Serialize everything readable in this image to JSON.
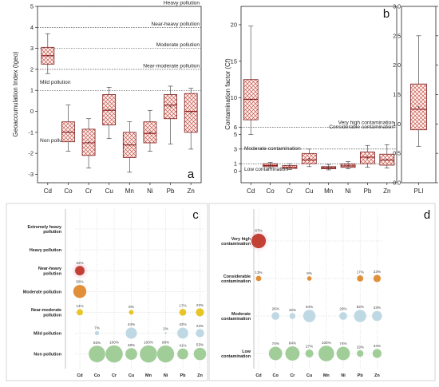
{
  "colors": {
    "hatch": "#c1392b",
    "median": "#8b1a1a",
    "bubble_red": "#c0392b",
    "bubble_orange": "#e08a2e",
    "bubble_yellow": "#e6c21c",
    "bubble_lightblue": "#bcd8e3",
    "bubble_green": "#9ccb93"
  },
  "panels": {
    "a": {
      "letter": "a"
    },
    "b": {
      "letter": "b"
    },
    "c": {
      "letter": "c"
    },
    "d": {
      "letter": "d"
    }
  },
  "chart_data": [
    {
      "id": "a",
      "type": "box",
      "ylabel": "Geoaccumulation Index (Igeo)",
      "ylim": [
        -3.4,
        5
      ],
      "yticks": [
        -3,
        -2,
        -1,
        0,
        1,
        2,
        3,
        4,
        5
      ],
      "categories": [
        "Cd",
        "Co",
        "Cr",
        "Cu",
        "Mn",
        "Ni",
        "Pb",
        "Zn"
      ],
      "boxes": [
        {
          "min": 1.8,
          "q1": 2.25,
          "median": 2.65,
          "q3": 3.05,
          "max": 3.7
        },
        {
          "min": -1.9,
          "q1": -1.45,
          "median": -1.0,
          "q3": -0.5,
          "max": 0.3
        },
        {
          "min": -2.7,
          "q1": -2.1,
          "median": -1.5,
          "q3": -0.85,
          "max": -0.35
        },
        {
          "min": -1.3,
          "q1": -0.65,
          "median": 0.05,
          "q3": 0.8,
          "max": 1.15
        },
        {
          "min": -2.9,
          "q1": -2.2,
          "median": -1.6,
          "q3": -1.0,
          "max": -0.5
        },
        {
          "min": -1.9,
          "q1": -1.5,
          "median": -1.05,
          "q3": -0.5,
          "max": 0.05
        },
        {
          "min": -1.55,
          "q1": -0.35,
          "median": 0.3,
          "q3": 0.8,
          "max": 1.2
        },
        {
          "min": -1.8,
          "q1": -1.0,
          "median": 0.0,
          "q3": 0.85,
          "max": 1.1
        }
      ],
      "thresholds": [
        {
          "value": 5,
          "label": "Heavy pollution"
        },
        {
          "value": 4,
          "label": "Near-heavy pollution"
        },
        {
          "value": 3,
          "label": "Moderate pollution"
        },
        {
          "value": 2,
          "label": "Near-moderate pollution"
        },
        {
          "value": 1,
          "label": "Mild pollution"
        },
        {
          "value": 0,
          "label": "Non pollution"
        }
      ]
    },
    {
      "id": "b",
      "type": "box",
      "ylabel": "Contamination factor (Cf)",
      "ylim": [
        -1.6,
        22.5
      ],
      "yticks": [
        0,
        1,
        3,
        5,
        6,
        10,
        15,
        20
      ],
      "categories": [
        "Cd",
        "Co",
        "Cr",
        "Cu",
        "Mn",
        "Ni",
        "Pb",
        "Zn"
      ],
      "boxes": [
        {
          "min": 5.0,
          "q1": 7.0,
          "median": 9.8,
          "q3": 12.5,
          "max": 19.8
        },
        {
          "min": 0.4,
          "q1": 0.6,
          "median": 0.75,
          "q3": 1.0,
          "max": 1.2
        },
        {
          "min": 0.2,
          "q1": 0.35,
          "median": 0.5,
          "q3": 0.75,
          "max": 1.0
        },
        {
          "min": 0.6,
          "q1": 1.0,
          "median": 1.5,
          "q3": 2.4,
          "max": 3.0
        },
        {
          "min": 0.15,
          "q1": 0.3,
          "median": 0.45,
          "q3": 0.6,
          "max": 0.9
        },
        {
          "min": 0.3,
          "q1": 0.5,
          "median": 0.7,
          "q3": 0.95,
          "max": 1.3
        },
        {
          "min": 0.5,
          "q1": 1.0,
          "median": 1.9,
          "q3": 2.6,
          "max": 3.5
        },
        {
          "min": 0.4,
          "q1": 0.8,
          "median": 1.5,
          "q3": 2.3,
          "max": 3.6
        }
      ],
      "thresholds": [
        {
          "value": 6,
          "label": "Very high contamination"
        },
        {
          "value": 3,
          "label": "Considerable contamination"
        },
        {
          "value": 1,
          "label": "Moderate contamination"
        }
      ],
      "bottom_label": "Low contamination"
    },
    {
      "id": "b-pli",
      "type": "box",
      "ylim": [
        0,
        3.0
      ],
      "yticks": [
        0.0,
        0.5,
        1.0,
        1.5,
        2.0,
        2.5,
        3.0
      ],
      "ytick_labels": [
        "0.0",
        "0.5",
        "1.0",
        "1.5",
        "2.0",
        "2.5",
        "3.0"
      ],
      "categories": [
        "PLI"
      ],
      "boxes": [
        {
          "min": 0.62,
          "q1": 0.9,
          "median": 1.25,
          "q3": 1.68,
          "max": 2.5
        }
      ]
    },
    {
      "id": "c",
      "type": "bubble",
      "categories": [
        "Cd",
        "Co",
        "Cr",
        "Cu",
        "Mn",
        "Ni",
        "Pb",
        "Zn"
      ],
      "rows": [
        "Extremely heavy pollution",
        "Heavy pollution",
        "Near-heavy pollution",
        "Moderate pollution",
        "Near-moderate pollution",
        "Mild pollution",
        "Non pollution"
      ],
      "bubbles": [
        {
          "cat": "Cd",
          "row": 2,
          "pct": 32,
          "label": "32%",
          "color": "bubble_red"
        },
        {
          "cat": "Cd",
          "row": 3,
          "pct": 58,
          "label": "58%",
          "color": "bubble_orange"
        },
        {
          "cat": "Cd",
          "row": 4,
          "pct": 14,
          "label": "14%",
          "color": "bubble_yellow"
        },
        {
          "cat": "Co",
          "row": 5,
          "pct": 7,
          "label": "7%",
          "color": "bubble_lightblue"
        },
        {
          "cat": "Co",
          "row": 6,
          "pct": 93,
          "label": "93%",
          "color": "bubble_green"
        },
        {
          "cat": "Cr",
          "row": 6,
          "pct": 100,
          "label": "100%",
          "color": "bubble_green"
        },
        {
          "cat": "Cu",
          "row": 4,
          "pct": 8,
          "label": "8%",
          "color": "bubble_yellow"
        },
        {
          "cat": "Cu",
          "row": 5,
          "pct": 44,
          "label": "44%",
          "color": "bubble_lightblue"
        },
        {
          "cat": "Cu",
          "row": 6,
          "pct": 48,
          "label": "48%",
          "color": "bubble_green"
        },
        {
          "cat": "Mn",
          "row": 6,
          "pct": 100,
          "label": "100%",
          "color": "bubble_green"
        },
        {
          "cat": "Ni",
          "row": 5,
          "pct": 2,
          "label": "2%",
          "color": "bubble_lightblue"
        },
        {
          "cat": "Ni",
          "row": 6,
          "pct": 98,
          "label": "98%",
          "color": "bubble_green"
        },
        {
          "cat": "Pb",
          "row": 4,
          "pct": 17,
          "label": "17%",
          "color": "bubble_yellow"
        },
        {
          "cat": "Pb",
          "row": 5,
          "pct": 42,
          "label": "42%",
          "color": "bubble_lightblue"
        },
        {
          "cat": "Pb",
          "row": 6,
          "pct": 41,
          "label": "41%",
          "color": "bubble_green"
        },
        {
          "cat": "Zn",
          "row": 4,
          "pct": 23,
          "label": "23%",
          "color": "bubble_yellow"
        },
        {
          "cat": "Zn",
          "row": 5,
          "pct": 24,
          "label": "24%",
          "color": "bubble_lightblue"
        },
        {
          "cat": "Zn",
          "row": 6,
          "pct": 53,
          "label": "53%",
          "color": "bubble_green"
        }
      ]
    },
    {
      "id": "d",
      "type": "bubble",
      "categories": [
        "Cd",
        "Co",
        "Cr",
        "Cu",
        "Mn",
        "Ni",
        "Pb",
        "Zn"
      ],
      "rows": [
        "Very high contamination",
        "Considerable contamination",
        "Moderate contamination",
        "Low contamination"
      ],
      "bubbles": [
        {
          "cat": "Cd",
          "row": 0,
          "pct": 87,
          "label": "87%",
          "color": "bubble_red"
        },
        {
          "cat": "Cd",
          "row": 1,
          "pct": 13,
          "label": "13%",
          "color": "bubble_orange"
        },
        {
          "cat": "Co",
          "row": 2,
          "pct": 26,
          "label": "26%",
          "color": "bubble_lightblue"
        },
        {
          "cat": "Co",
          "row": 3,
          "pct": 74,
          "label": "74%",
          "color": "bubble_green"
        },
        {
          "cat": "Cr",
          "row": 2,
          "pct": 16,
          "label": "16%",
          "color": "bubble_lightblue"
        },
        {
          "cat": "Cr",
          "row": 3,
          "pct": 84,
          "label": "84%",
          "color": "bubble_green"
        },
        {
          "cat": "Cu",
          "row": 1,
          "pct": 9,
          "label": "9%",
          "color": "bubble_orange"
        },
        {
          "cat": "Cu",
          "row": 2,
          "pct": 64,
          "label": "64%",
          "color": "bubble_lightblue"
        },
        {
          "cat": "Cu",
          "row": 3,
          "pct": 27,
          "label": "27%",
          "color": "bubble_green"
        },
        {
          "cat": "Mn",
          "row": 3,
          "pct": 100,
          "label": "100%",
          "color": "bubble_green"
        },
        {
          "cat": "Ni",
          "row": 2,
          "pct": 26,
          "label": "26%",
          "color": "bubble_lightblue"
        },
        {
          "cat": "Ni",
          "row": 3,
          "pct": 74,
          "label": "74%",
          "color": "bubble_green"
        },
        {
          "cat": "Pb",
          "row": 1,
          "pct": 17,
          "label": "17%",
          "color": "bubble_orange"
        },
        {
          "cat": "Pb",
          "row": 2,
          "pct": 63,
          "label": "63%",
          "color": "bubble_lightblue"
        },
        {
          "cat": "Pb",
          "row": 3,
          "pct": 19,
          "label": "19%",
          "color": "bubble_green"
        },
        {
          "cat": "Zn",
          "row": 1,
          "pct": 23,
          "label": "23%",
          "color": "bubble_orange"
        },
        {
          "cat": "Zn",
          "row": 2,
          "pct": 43,
          "label": "43%",
          "color": "bubble_lightblue"
        },
        {
          "cat": "Zn",
          "row": 3,
          "pct": 34,
          "label": "34%",
          "color": "bubble_green"
        }
      ]
    }
  ]
}
